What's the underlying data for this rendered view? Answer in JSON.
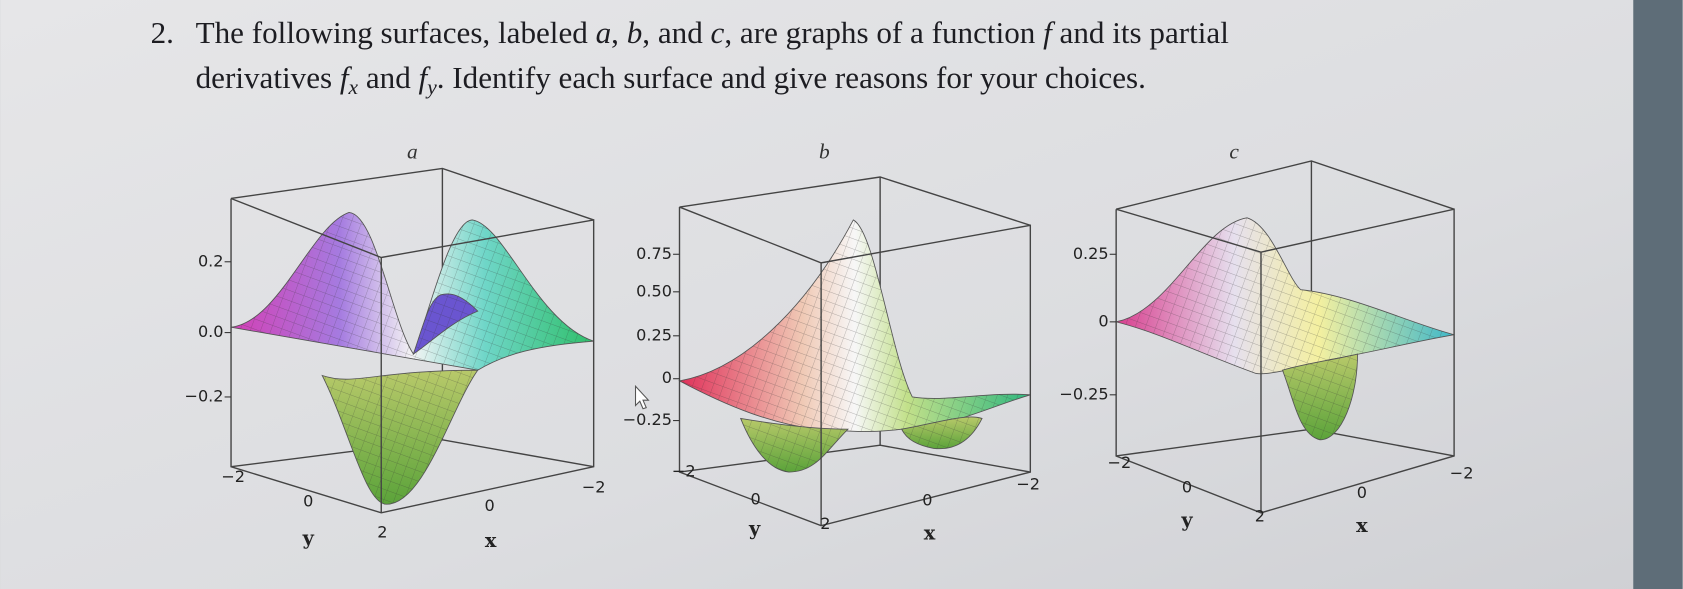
{
  "question": {
    "number": "2.",
    "lines": [
      [
        {
          "text": "The following surfaces, labeled "
        },
        {
          "text": "a",
          "italic": true
        },
        {
          "text": ", "
        },
        {
          "text": "b",
          "italic": true
        },
        {
          "text": ", and "
        },
        {
          "text": "c",
          "italic": true
        },
        {
          "text": ", are graphs of a function "
        },
        {
          "text": "f",
          "italic": true
        },
        {
          "text": " and its partial"
        }
      ],
      [
        {
          "text": "derivatives "
        },
        {
          "text": "f",
          "italic": true
        },
        {
          "text": "x",
          "italic": true,
          "sub": true
        },
        {
          "text": " and "
        },
        {
          "text": "f",
          "italic": true
        },
        {
          "text": "y",
          "italic": true,
          "sub": true
        },
        {
          "text": ". Identify each surface and give reasons for your choices."
        }
      ]
    ]
  },
  "figures": [
    {
      "label": "a",
      "z_ticks": [
        "0.2",
        "0.0",
        "−0.2"
      ],
      "y_ticks": [
        "−2",
        "0",
        "2"
      ],
      "x_ticks": [
        "0",
        "−2"
      ],
      "y_label": "y",
      "x_label": "x"
    },
    {
      "label": "b",
      "z_ticks": [
        "0.75",
        "0.50",
        "0.25",
        "0",
        "−0.25"
      ],
      "y_ticks": [
        "−2",
        "0",
        "2"
      ],
      "x_ticks": [
        "0",
        "−2"
      ],
      "y_label": "y",
      "x_label": "x"
    },
    {
      "label": "c",
      "z_ticks": [
        "0.25",
        "0",
        "−0.25"
      ],
      "y_ticks": [
        "−2",
        "0",
        "2"
      ],
      "x_ticks": [
        "0",
        "−2"
      ],
      "y_label": "y",
      "x_label": "x"
    }
  ]
}
